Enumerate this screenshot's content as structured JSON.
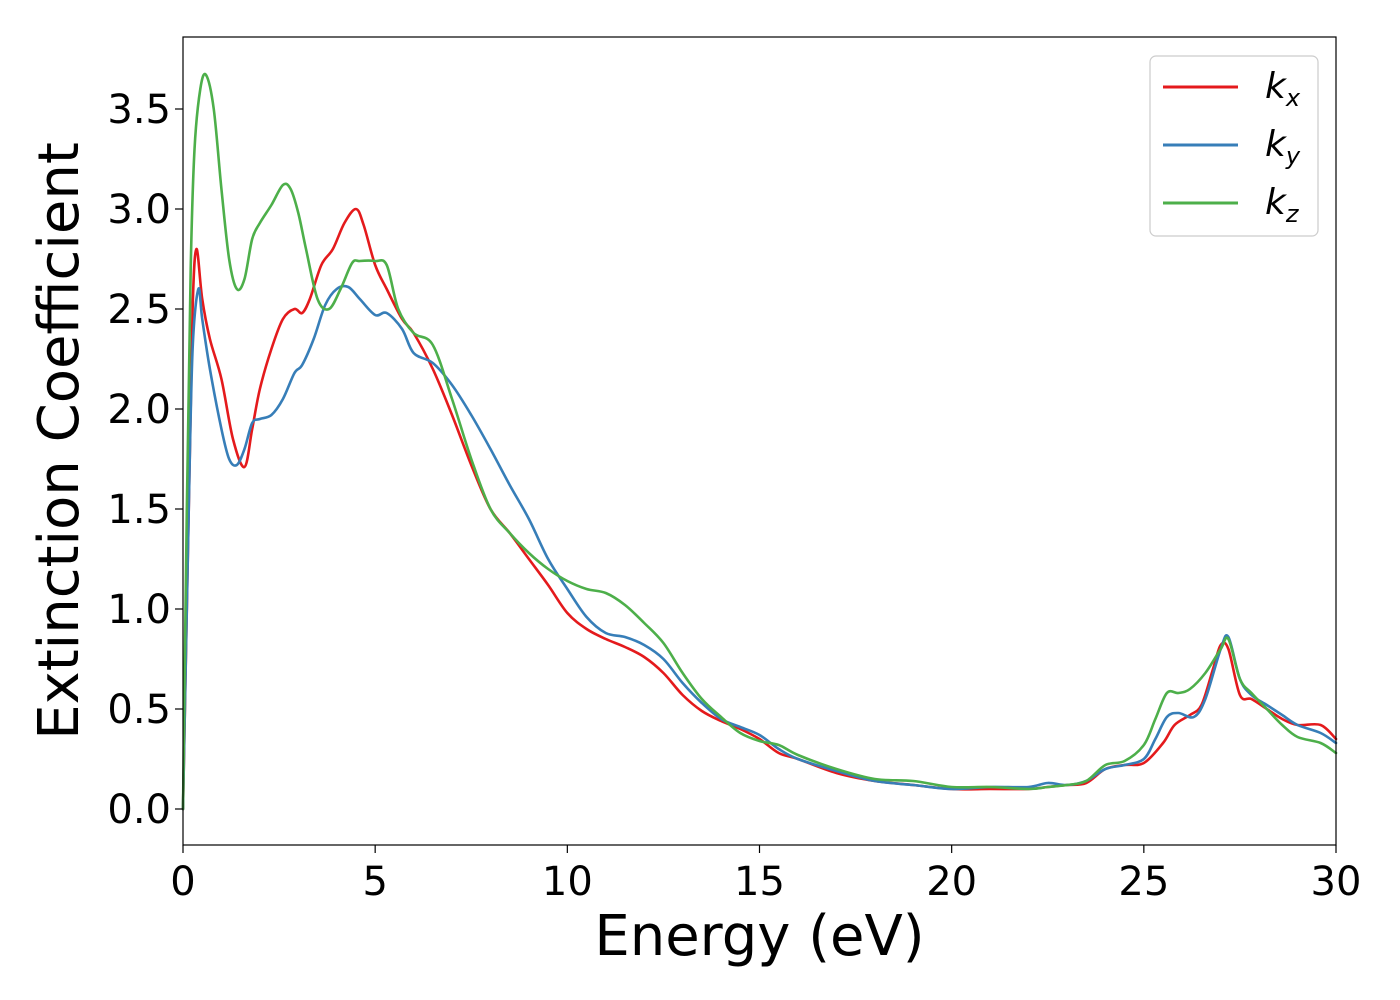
{
  "chart_data": {
    "type": "line",
    "title": "",
    "xlabel": "Energy (eV)",
    "ylabel": "Extinction Coefficient",
    "xlim": [
      0,
      30
    ],
    "ylim": [
      -0.18,
      3.86
    ],
    "xticks": [
      0,
      5,
      10,
      15,
      20,
      25,
      30
    ],
    "xtick_labels": [
      "0",
      "5",
      "10",
      "15",
      "20",
      "25",
      "30"
    ],
    "yticks": [
      0.0,
      0.5,
      1.0,
      1.5,
      2.0,
      2.5,
      3.0,
      3.5
    ],
    "ytick_labels": [
      "0.0",
      "0.5",
      "1.0",
      "1.5",
      "2.0",
      "2.5",
      "3.0",
      "3.5"
    ],
    "grid": false,
    "legend_position": "top-right",
    "series": [
      {
        "name": "k",
        "subscript": "x",
        "color": "#e41a1c",
        "x": [
          0,
          0.15,
          0.25,
          0.35,
          0.5,
          0.7,
          1.0,
          1.3,
          1.6,
          1.8,
          2.0,
          2.3,
          2.6,
          2.9,
          3.1,
          3.3,
          3.6,
          3.9,
          4.2,
          4.5,
          4.7,
          5.0,
          5.3,
          5.7,
          6.0,
          6.5,
          7.0,
          7.5,
          8.0,
          8.5,
          9.0,
          9.5,
          10.0,
          10.5,
          11.0,
          11.5,
          12.0,
          12.5,
          13.0,
          13.5,
          14.0,
          14.5,
          15.0,
          15.5,
          16.0,
          17.0,
          18.0,
          19.0,
          20.0,
          21.0,
          22.0,
          22.5,
          23.0,
          23.5,
          24.0,
          24.5,
          25.0,
          25.5,
          25.8,
          26.2,
          26.5,
          26.8,
          27.0,
          27.2,
          27.5,
          27.8,
          28.2,
          28.6,
          29.0,
          29.6,
          30.0
        ],
        "y": [
          0.0,
          1.5,
          2.5,
          2.8,
          2.55,
          2.35,
          2.15,
          1.85,
          1.71,
          1.9,
          2.1,
          2.3,
          2.45,
          2.5,
          2.48,
          2.55,
          2.72,
          2.8,
          2.93,
          3.0,
          2.92,
          2.72,
          2.6,
          2.45,
          2.38,
          2.2,
          1.97,
          1.72,
          1.5,
          1.38,
          1.25,
          1.12,
          0.98,
          0.9,
          0.85,
          0.81,
          0.76,
          0.68,
          0.57,
          0.49,
          0.44,
          0.4,
          0.35,
          0.28,
          0.25,
          0.18,
          0.14,
          0.12,
          0.1,
          0.1,
          0.1,
          0.11,
          0.12,
          0.13,
          0.2,
          0.22,
          0.23,
          0.33,
          0.42,
          0.47,
          0.52,
          0.7,
          0.82,
          0.8,
          0.57,
          0.55,
          0.5,
          0.45,
          0.42,
          0.42,
          0.35
        ]
      },
      {
        "name": "k",
        "subscript": "y",
        "color": "#377eb8",
        "x": [
          0,
          0.15,
          0.25,
          0.4,
          0.5,
          0.7,
          1.0,
          1.2,
          1.4,
          1.6,
          1.8,
          2.0,
          2.3,
          2.6,
          2.9,
          3.1,
          3.4,
          3.7,
          4.0,
          4.3,
          4.6,
          5.0,
          5.3,
          5.7,
          6.0,
          6.5,
          7.0,
          7.5,
          8.0,
          8.5,
          9.0,
          9.5,
          10.0,
          10.5,
          11.0,
          11.5,
          12.0,
          12.5,
          13.0,
          13.5,
          14.0,
          14.5,
          15.0,
          15.5,
          16.0,
          17.0,
          18.0,
          19.0,
          20.0,
          21.0,
          22.0,
          22.5,
          23.0,
          23.5,
          24.0,
          24.5,
          25.0,
          25.3,
          25.6,
          25.9,
          26.3,
          26.6,
          27.0,
          27.2,
          27.5,
          27.8,
          28.2,
          28.6,
          29.0,
          29.6,
          30.0
        ],
        "y": [
          0.0,
          1.5,
          2.3,
          2.6,
          2.45,
          2.2,
          1.9,
          1.75,
          1.72,
          1.8,
          1.93,
          1.95,
          1.97,
          2.05,
          2.18,
          2.22,
          2.35,
          2.52,
          2.6,
          2.61,
          2.55,
          2.47,
          2.48,
          2.4,
          2.28,
          2.23,
          2.12,
          1.97,
          1.8,
          1.62,
          1.45,
          1.25,
          1.1,
          0.96,
          0.88,
          0.86,
          0.82,
          0.75,
          0.63,
          0.53,
          0.45,
          0.41,
          0.37,
          0.3,
          0.25,
          0.19,
          0.14,
          0.12,
          0.1,
          0.11,
          0.11,
          0.13,
          0.12,
          0.14,
          0.2,
          0.22,
          0.25,
          0.35,
          0.46,
          0.48,
          0.46,
          0.55,
          0.8,
          0.86,
          0.65,
          0.57,
          0.52,
          0.47,
          0.42,
          0.38,
          0.33
        ]
      },
      {
        "name": "k",
        "subscript": "z",
        "color": "#4daf4a",
        "x": [
          0,
          0.1,
          0.2,
          0.3,
          0.45,
          0.6,
          0.8,
          1.0,
          1.2,
          1.4,
          1.6,
          1.8,
          2.0,
          2.3,
          2.6,
          2.8,
          3.0,
          3.2,
          3.5,
          3.8,
          4.1,
          4.4,
          4.6,
          5.0,
          5.3,
          5.6,
          6.0,
          6.5,
          7.0,
          7.5,
          8.0,
          8.5,
          9.0,
          9.5,
          10.0,
          10.5,
          11.0,
          11.5,
          12.0,
          12.5,
          13.0,
          13.5,
          14.0,
          14.5,
          15.0,
          15.5,
          16.0,
          17.0,
          18.0,
          19.0,
          20.0,
          21.0,
          22.0,
          22.5,
          23.0,
          23.5,
          24.0,
          24.5,
          25.0,
          25.3,
          25.6,
          25.9,
          26.2,
          26.6,
          27.0,
          27.2,
          27.5,
          27.8,
          28.2,
          28.6,
          29.0,
          29.6,
          30.0
        ],
        "y": [
          0.0,
          1.5,
          2.7,
          3.3,
          3.6,
          3.67,
          3.5,
          3.1,
          2.75,
          2.6,
          2.65,
          2.85,
          2.93,
          3.02,
          3.12,
          3.1,
          2.98,
          2.8,
          2.55,
          2.5,
          2.6,
          2.73,
          2.74,
          2.74,
          2.72,
          2.5,
          2.38,
          2.32,
          2.05,
          1.75,
          1.5,
          1.38,
          1.28,
          1.2,
          1.14,
          1.1,
          1.08,
          1.02,
          0.93,
          0.83,
          0.68,
          0.55,
          0.46,
          0.38,
          0.34,
          0.32,
          0.27,
          0.2,
          0.15,
          0.14,
          0.11,
          0.11,
          0.1,
          0.11,
          0.12,
          0.14,
          0.22,
          0.24,
          0.32,
          0.45,
          0.58,
          0.58,
          0.6,
          0.68,
          0.8,
          0.85,
          0.65,
          0.58,
          0.5,
          0.42,
          0.36,
          0.33,
          0.28
        ]
      }
    ]
  }
}
